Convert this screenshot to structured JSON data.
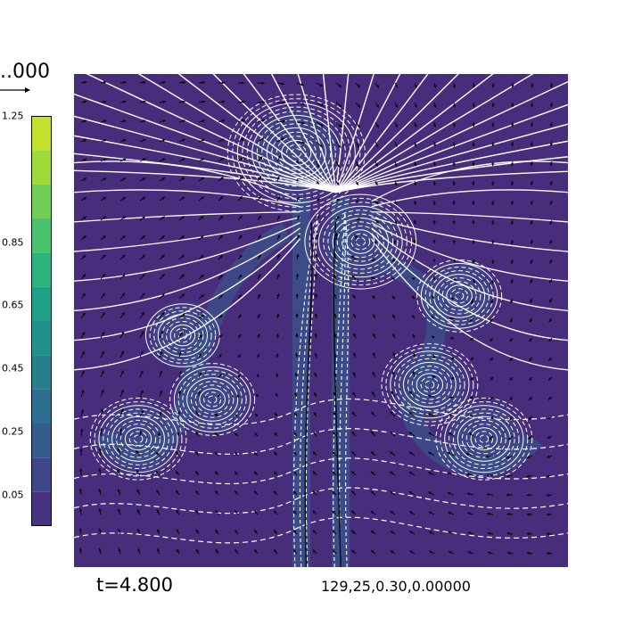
{
  "chart_data": {
    "type": "heatmap",
    "title": "",
    "quiver_key_label": "..000",
    "time_label": "t=4.800",
    "params_label": "129,25,0.30,0.00000",
    "colorbar": {
      "ticks": [
        "1.25",
        "0.85",
        "0.65",
        "0.45",
        "0.25",
        "0.05"
      ],
      "tick_values": [
        1.25,
        0.85,
        0.65,
        0.45,
        0.25,
        0.05
      ],
      "range": [
        -0.05,
        1.25
      ],
      "levels": 11,
      "colors": [
        "#46327e",
        "#3f4788",
        "#365c8d",
        "#2e6e8e",
        "#277f8e",
        "#21918c",
        "#1fa187",
        "#2db27d",
        "#4ac16d",
        "#71cf57",
        "#a0da39",
        "#c0e12d"
      ]
    },
    "background_color": "#472d7b",
    "contour_color": "#ffffff",
    "features": {
      "vortices": [
        {
          "x": 0.45,
          "y": 0.84,
          "strength": 1.0
        },
        {
          "x": 0.58,
          "y": 0.66,
          "strength": 0.8
        },
        {
          "x": 0.78,
          "y": 0.55,
          "strength": 0.5
        },
        {
          "x": 0.72,
          "y": 0.37,
          "strength": 0.6
        },
        {
          "x": 0.83,
          "y": 0.26,
          "strength": 0.6
        },
        {
          "x": 0.13,
          "y": 0.26,
          "strength": 0.6
        },
        {
          "x": 0.28,
          "y": 0.34,
          "strength": 0.5
        },
        {
          "x": 0.22,
          "y": 0.47,
          "strength": 0.4
        }
      ],
      "plumes": [
        {
          "x": 0.46,
          "y": 0.0
        },
        {
          "x": 0.54,
          "y": 0.0
        }
      ]
    }
  }
}
